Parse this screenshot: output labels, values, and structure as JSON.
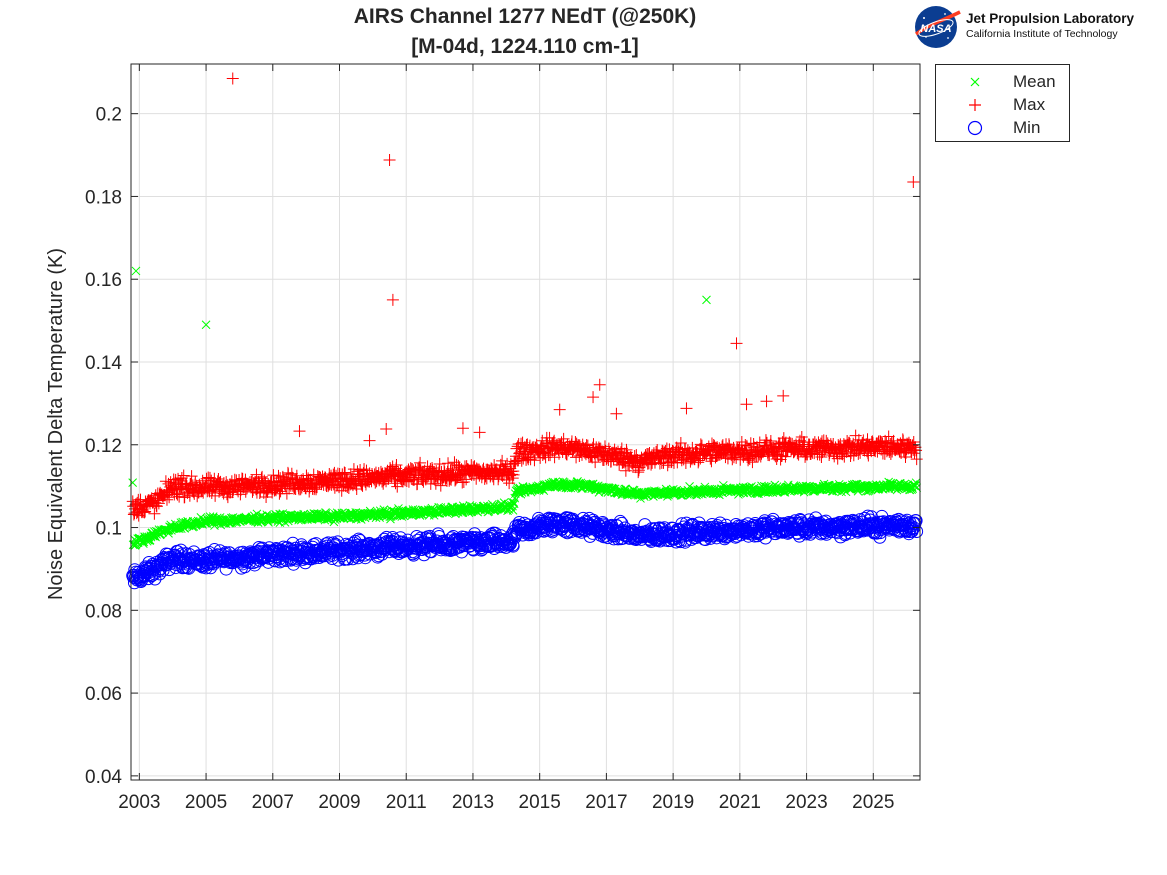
{
  "title_lines": [
    "AIRS Channel 1277 NEdT (@250K)",
    "[M-04d, 1224.110 cm-1]"
  ],
  "logo": {
    "badge_text": "NASA",
    "name": "Jet Propulsion Laboratory",
    "subtitle": "California Institute of Technology"
  },
  "chart_data": {
    "type": "scatter",
    "title": "AIRS Channel 1277 NEdT (@250K) [M-04d, 1224.110 cm-1]",
    "xlabel": "",
    "ylabel": "Noise Equivalent Delta Temperature (K)",
    "xlim": [
      2002.75,
      2026.4
    ],
    "ylim": [
      0.039,
      0.212
    ],
    "xticks": [
      "2003",
      "2005",
      "2007",
      "2009",
      "2011",
      "2013",
      "2015",
      "2017",
      "2019",
      "2021",
      "2023",
      "2025"
    ],
    "yticks": [
      "0.04",
      "0.06",
      "0.08",
      "0.1",
      "0.12",
      "0.14",
      "0.16",
      "0.18",
      "0.2"
    ],
    "grid": true,
    "legend_position": "outside-top-right",
    "series": [
      {
        "name": "Mean",
        "marker": "x",
        "color": "#00ff00",
        "trend": [
          [
            2002.8,
            0.096
          ],
          [
            2003.5,
            0.0985
          ],
          [
            2004.0,
            0.1
          ],
          [
            2005.0,
            0.1015
          ],
          [
            2007.0,
            0.1023
          ],
          [
            2009.0,
            0.1027
          ],
          [
            2011.0,
            0.1035
          ],
          [
            2014.2,
            0.105
          ],
          [
            2014.3,
            0.1085
          ],
          [
            2015.5,
            0.1105
          ],
          [
            2016.5,
            0.11
          ],
          [
            2018.0,
            0.108
          ],
          [
            2019.0,
            0.1085
          ],
          [
            2021.0,
            0.109
          ],
          [
            2023.0,
            0.1095
          ],
          [
            2026.3,
            0.11
          ]
        ],
        "outliers": [
          [
            2002.9,
            0.162
          ],
          [
            2005.0,
            0.149
          ],
          [
            2020.0,
            0.155
          ]
        ]
      },
      {
        "name": "Max",
        "marker": "+",
        "color": "#ff0000",
        "trend": [
          [
            2002.8,
            0.1045
          ],
          [
            2003.5,
            0.106
          ],
          [
            2004.0,
            0.11
          ],
          [
            2005.0,
            0.1095
          ],
          [
            2007.0,
            0.1105
          ],
          [
            2009.0,
            0.1115
          ],
          [
            2011.0,
            0.1125
          ],
          [
            2014.2,
            0.1135
          ],
          [
            2014.3,
            0.118
          ],
          [
            2015.5,
            0.1195
          ],
          [
            2016.5,
            0.1185
          ],
          [
            2018.0,
            0.116
          ],
          [
            2019.0,
            0.1175
          ],
          [
            2021.0,
            0.1185
          ],
          [
            2023.0,
            0.119
          ],
          [
            2026.3,
            0.1195
          ]
        ],
        "outliers": [
          [
            2005.8,
            0.2085
          ],
          [
            2010.5,
            0.1888
          ],
          [
            2010.6,
            0.155
          ],
          [
            2020.9,
            0.1445
          ],
          [
            2016.8,
            0.1345
          ],
          [
            2016.6,
            0.1315
          ],
          [
            2022.3,
            0.1318
          ],
          [
            2021.8,
            0.1305
          ],
          [
            2021.2,
            0.1298
          ],
          [
            2019.4,
            0.1288
          ],
          [
            2017.3,
            0.1275
          ],
          [
            2026.2,
            0.1835
          ],
          [
            2007.8,
            0.1233
          ],
          [
            2010.4,
            0.1238
          ],
          [
            2009.9,
            0.121
          ],
          [
            2012.7,
            0.124
          ],
          [
            2013.2,
            0.123
          ],
          [
            2015.6,
            0.1285
          ]
        ]
      },
      {
        "name": "Min",
        "marker": "o",
        "color": "#0000ff",
        "trend": [
          [
            2002.8,
            0.0875
          ],
          [
            2003.5,
            0.09
          ],
          [
            2004.0,
            0.0925
          ],
          [
            2005.0,
            0.092
          ],
          [
            2007.0,
            0.0935
          ],
          [
            2009.0,
            0.0945
          ],
          [
            2011.0,
            0.0955
          ],
          [
            2014.2,
            0.0965
          ],
          [
            2014.3,
            0.099
          ],
          [
            2015.5,
            0.101
          ],
          [
            2016.5,
            0.1
          ],
          [
            2018.0,
            0.098
          ],
          [
            2019.0,
            0.0985
          ],
          [
            2021.0,
            0.0995
          ],
          [
            2023.0,
            0.1
          ],
          [
            2026.3,
            0.1005
          ]
        ],
        "outliers": []
      }
    ]
  }
}
